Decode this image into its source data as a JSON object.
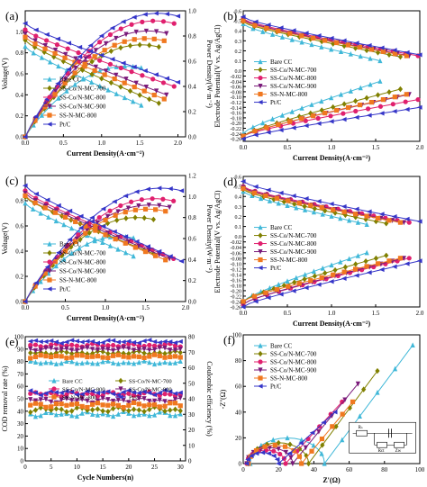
{
  "series_styles": [
    {
      "name": "Bare CC",
      "color": "#40b8d8",
      "marker": "tri-up"
    },
    {
      "name": "SS-Co/N-MC-700",
      "color": "#808000",
      "marker": "diamond"
    },
    {
      "name": "SS-Co/N-MC-800",
      "color": "#e0206e",
      "marker": "circle"
    },
    {
      "name": "SS-Co/N-MC-900",
      "color": "#7a1a7a",
      "marker": "tri-down"
    },
    {
      "name": "SS-N-MC-800",
      "color": "#f07820",
      "marker": "square"
    },
    {
      "name": "Pt/C",
      "color": "#3535c8",
      "marker": "tri-left"
    }
  ],
  "chart_data": [
    {
      "panel": "a",
      "type": "line",
      "xlabel": "Current Density(A·cm⁻²)",
      "ylabel": "Voltage(V)",
      "y2label": "Power Density(W·m⁻²)",
      "xlim": [
        0,
        2.1
      ],
      "ylim": [
        0,
        1.2
      ],
      "y2lim": [
        0,
        1.0
      ],
      "xticks": [
        "0.0",
        "0.5",
        "1.0",
        "1.5",
        "2.0"
      ],
      "yticks": [
        "0.0",
        "0.2",
        "0.4",
        "0.6",
        "0.8",
        "1.0"
      ],
      "y2ticks": [
        "0.0",
        "0.2",
        "0.4",
        "0.6",
        "0.8",
        "1.0"
      ],
      "legend": "lower-left",
      "series": [
        {
          "name": "Bare CC",
          "xmax": 1.52,
          "v0": 0.86,
          "v1": 0.3,
          "pmax": 0.56
        },
        {
          "name": "SS-Co/N-MC-700",
          "xmax": 1.75,
          "v0": 0.92,
          "v1": 0.32,
          "pmax": 0.73
        },
        {
          "name": "SS-Co/N-MC-800",
          "xmax": 1.95,
          "v0": 1.02,
          "v1": 0.48,
          "pmax": 0.92
        },
        {
          "name": "SS-Co/N-MC-900",
          "xmax": 1.85,
          "v0": 0.98,
          "v1": 0.4,
          "pmax": 0.84
        },
        {
          "name": "SS-N-MC-800",
          "xmax": 1.82,
          "v0": 0.95,
          "v1": 0.36,
          "pmax": 0.78
        },
        {
          "name": "Pt/C",
          "xmax": 2.0,
          "v0": 1.08,
          "v1": 0.52,
          "pmax": 0.98
        }
      ]
    },
    {
      "panel": "b",
      "type": "line",
      "xlabel": "Current Density(A·cm⁻²)",
      "ylabel": "Electrode Potential(V vs. Ag/AgCl)",
      "xlim": [
        0,
        2.0
      ],
      "ylim": [
        -0.27,
        0.6
      ],
      "xticks": [
        "0.0",
        "0.5",
        "1.0",
        "1.5",
        "2.0"
      ],
      "yticks": [
        "0.6",
        "0.5",
        "0.4",
        "0.3",
        "0.2",
        "0.1",
        "0.0",
        "-0.02",
        "-0.04",
        "-0.06",
        "-0.08",
        "-0.10",
        "-0.12",
        "-0.14",
        "-0.16",
        "-0.18",
        "-0.20",
        "-0.22",
        "-0.24",
        "-0.26"
      ],
      "legend": "center-left",
      "series": [
        {
          "name": "Bare CC",
          "xmax": 1.55,
          "c0": 0.47,
          "c1": 0.1,
          "a0": -0.24,
          "a1": -0.04
        },
        {
          "name": "SS-Co/N-MC-700",
          "xmax": 1.78,
          "c0": 0.49,
          "c1": 0.14,
          "a0": -0.25,
          "a1": -0.07
        },
        {
          "name": "SS-Co/N-MC-800",
          "xmax": 1.98,
          "c0": 0.52,
          "c1": 0.15,
          "a0": -0.25,
          "a1": -0.11
        },
        {
          "name": "SS-Co/N-MC-900",
          "xmax": 1.88,
          "c0": 0.51,
          "c1": 0.15,
          "a0": -0.25,
          "a1": -0.09
        },
        {
          "name": "SS-N-MC-800",
          "xmax": 1.85,
          "c0": 0.5,
          "c1": 0.15,
          "a0": -0.25,
          "a1": -0.09
        },
        {
          "name": "Pt/C",
          "xmax": 2.0,
          "c0": 0.54,
          "c1": 0.16,
          "a0": -0.26,
          "a1": -0.14
        }
      ]
    },
    {
      "panel": "c",
      "type": "line",
      "xlabel": "Current Density(A·cm⁻²)",
      "ylabel": "Voltage(V)",
      "y2label": "Power Density(W·m⁻²)",
      "xlim": [
        0,
        2.0
      ],
      "ylim": [
        0,
        1.0
      ],
      "y2lim": [
        0,
        1.2
      ],
      "xticks": [
        "0.0",
        "0.5",
        "1.0",
        "1.5",
        "2.0"
      ],
      "yticks": [
        "0.0",
        "0.2",
        "0.4",
        "0.6",
        "0.8"
      ],
      "y2ticks": [
        "0.0",
        "0.2",
        "0.4",
        "0.6",
        "0.8",
        "1.0",
        "1.2"
      ],
      "legend": "lower-left",
      "series": [
        {
          "name": "Bare CC",
          "xmax": 1.35,
          "v0": 0.78,
          "v1": 0.36,
          "pmax": 0.62
        },
        {
          "name": "SS-Co/N-MC-700",
          "xmax": 1.6,
          "v0": 0.83,
          "v1": 0.38,
          "pmax": 0.8
        },
        {
          "name": "SS-Co/N-MC-800",
          "xmax": 1.85,
          "v0": 0.88,
          "v1": 0.34,
          "pmax": 0.98
        },
        {
          "name": "SS-Co/N-MC-900",
          "xmax": 1.8,
          "v0": 0.86,
          "v1": 0.34,
          "pmax": 0.92
        },
        {
          "name": "SS-N-MC-800",
          "xmax": 1.75,
          "v0": 0.84,
          "v1": 0.33,
          "pmax": 0.88
        },
        {
          "name": "Pt/C",
          "xmax": 1.95,
          "v0": 0.92,
          "v1": 0.32,
          "pmax": 1.08
        }
      ]
    },
    {
      "panel": "d",
      "type": "line",
      "xlabel": "Current Density(A·cm⁻²)",
      "ylabel": "Electrode Potential(V vs. Ag/AgCl)",
      "xlim": [
        0,
        2.0
      ],
      "ylim": [
        -0.26,
        0.6
      ],
      "xticks": [
        "0.0",
        "0.5",
        "1.0",
        "1.5",
        "2.0"
      ],
      "yticks": [
        "0.6",
        "0.5",
        "0.4",
        "0.3",
        "0.2",
        "0.1",
        "0.0",
        "-0.02",
        "-0.04",
        "-0.06",
        "-0.08",
        "-0.10",
        "-0.12",
        "-0.14",
        "-0.16",
        "-0.18",
        "-0.20",
        "-0.22",
        "-0.24",
        "-0.26"
      ],
      "legend": "center-left",
      "series": [
        {
          "name": "Bare CC",
          "xmax": 1.4,
          "c0": 0.45,
          "c1": 0.12,
          "a0": -0.24,
          "a1": -0.06
        },
        {
          "name": "SS-Co/N-MC-700",
          "xmax": 1.62,
          "c0": 0.47,
          "c1": 0.13,
          "a0": -0.24,
          "a1": -0.07
        },
        {
          "name": "SS-Co/N-MC-800",
          "xmax": 1.88,
          "c0": 0.5,
          "c1": 0.14,
          "a0": -0.25,
          "a1": -0.08
        },
        {
          "name": "SS-Co/N-MC-900",
          "xmax": 1.82,
          "c0": 0.49,
          "c1": 0.14,
          "a0": -0.25,
          "a1": -0.08
        },
        {
          "name": "SS-N-MC-800",
          "xmax": 1.78,
          "c0": 0.48,
          "c1": 0.14,
          "a0": -0.24,
          "a1": -0.08
        },
        {
          "name": "Pt/C",
          "xmax": 2.0,
          "c0": 0.55,
          "c1": 0.15,
          "a0": -0.26,
          "a1": -0.09
        }
      ]
    },
    {
      "panel": "e",
      "type": "line",
      "xlabel": "Cycle Numbers(n)",
      "ylabel": "COD removal rate (%)",
      "y2label": "Coulombic efficiency (%)",
      "xlim": [
        0,
        31
      ],
      "ylim": [
        0,
        100
      ],
      "y2lim": [
        0,
        80
      ],
      "xticks": [
        "0",
        "5",
        "10",
        "15",
        "20",
        "25",
        "30"
      ],
      "yticks": [
        "0",
        "10",
        "20",
        "30",
        "40",
        "50",
        "60",
        "70",
        "80",
        "90",
        "100"
      ],
      "y2ticks": [
        "0",
        "10",
        "20",
        "30",
        "40",
        "50",
        "60",
        "70",
        "80"
      ],
      "legend": "center",
      "cod_removal": [
        {
          "name": "Bare CC",
          "mean": 79
        },
        {
          "name": "SS-Co/N-MC-700",
          "mean": 87
        },
        {
          "name": "SS-Co/N-MC-800",
          "mean": 93
        },
        {
          "name": "SS-Co/N-MC-900",
          "mean": 90
        },
        {
          "name": "SS-N-MC-800",
          "mean": 84
        },
        {
          "name": "Pt/C",
          "mean": 96
        }
      ],
      "coulombic_efficiency": [
        {
          "name": "Bare CC",
          "mean": 30
        },
        {
          "name": "SS-Co/N-MC-700",
          "mean": 33
        },
        {
          "name": "SS-Co/N-MC-800",
          "mean": 43
        },
        {
          "name": "SS-Co/N-MC-900",
          "mean": 39
        },
        {
          "name": "SS-N-MC-800",
          "mean": 36
        },
        {
          "name": "Pt/C",
          "mean": 44
        }
      ]
    },
    {
      "panel": "f",
      "type": "scatter",
      "xlabel": "Z'(Ω)",
      "ylabel": "-Z''(Ω)",
      "xlim": [
        0,
        100
      ],
      "ylim": [
        0,
        100
      ],
      "xticks": [
        "0",
        "20",
        "40",
        "60",
        "80",
        "100"
      ],
      "yticks": [
        "0",
        "20",
        "40",
        "60",
        "80",
        "100"
      ],
      "legend": "top-left",
      "inset": {
        "r1": "Rₛ",
        "r2": "Rct",
        "z": "Zw"
      },
      "series": [
        {
          "name": "Bare CC",
          "rs": 4,
          "rct": 42,
          "tail_end": [
            96,
            92
          ]
        },
        {
          "name": "SS-Co/N-MC-700",
          "rs": 3,
          "rct": 34,
          "tail_end": [
            76,
            72
          ]
        },
        {
          "name": "SS-Co/N-MC-800",
          "rs": 2,
          "rct": 22,
          "tail_end": [
            56,
            48
          ]
        },
        {
          "name": "SS-Co/N-MC-900",
          "rs": 2,
          "rct": 26,
          "tail_end": [
            65,
            62
          ]
        },
        {
          "name": "SS-N-MC-800",
          "rs": 3,
          "rct": 30,
          "tail_end": [
            62,
            48
          ]
        },
        {
          "name": "Pt/C",
          "rs": 2,
          "rct": 18,
          "tail_end": [
            52,
            40
          ]
        }
      ]
    }
  ]
}
